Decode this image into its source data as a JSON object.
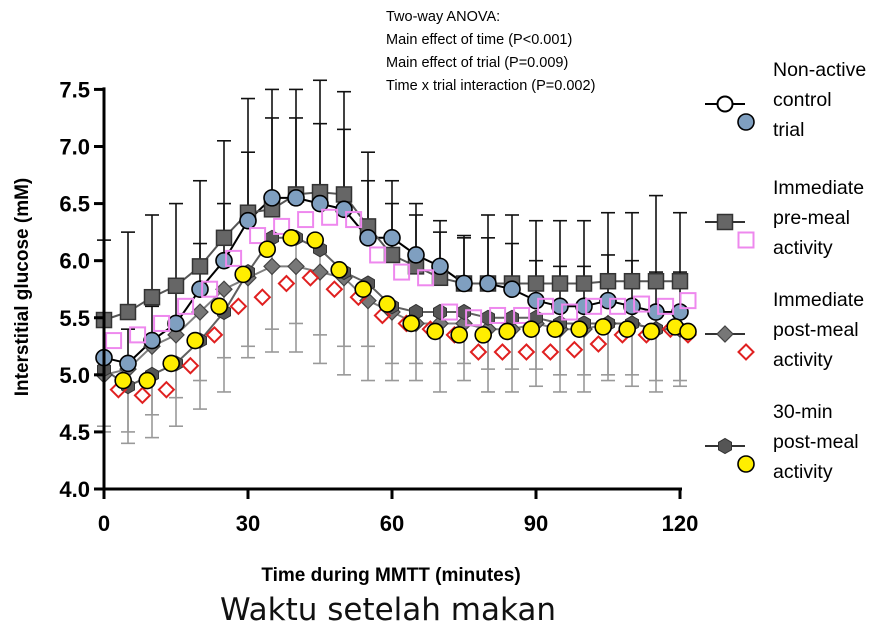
{
  "chart_data": {
    "type": "line",
    "xlabel": "Time during MMTT (minutes)",
    "ylabel": "Interstitial glucose (mM)",
    "xlim": [
      0,
      122
    ],
    "ylim": [
      4.0,
      7.6
    ],
    "xticks": [
      0,
      30,
      60,
      90,
      120
    ],
    "xtick_labels": [
      "0",
      "30",
      "60",
      "90",
      "120"
    ],
    "yticks": [
      4.0,
      4.5,
      5.0,
      5.5,
      6.0,
      6.5,
      7.0,
      7.5
    ],
    "ytick_labels": [
      "4.0",
      "4.5",
      "5.0",
      "5.5",
      "6.0",
      "6.5",
      "7.0",
      "7.5"
    ],
    "grid": false,
    "legend_position": "right",
    "annotation": [
      "Two-way ANOVA:",
      "Main effect of time (P<0.001)",
      "Main effect of trial (P=0.009)",
      "Time x trial interaction (P=0.002)"
    ],
    "x": [
      0,
      5,
      10,
      15,
      20,
      25,
      30,
      35,
      40,
      45,
      50,
      55,
      60,
      65,
      70,
      75,
      80,
      85,
      90,
      95,
      100,
      105,
      110,
      115,
      120
    ],
    "series": [
      {
        "name": "Non-active control trial",
        "legend_lines": [
          "Non-active",
          "control",
          "trial"
        ],
        "color": "#000000",
        "marker": "circle",
        "values": [
          5.15,
          5.1,
          5.3,
          5.45,
          5.75,
          6.0,
          6.35,
          6.55,
          6.55,
          6.5,
          6.45,
          6.2,
          6.2,
          6.05,
          5.95,
          5.8,
          5.8,
          5.75,
          5.65,
          5.6,
          5.6,
          5.65,
          5.6,
          5.55,
          5.55
        ],
        "errors": [
          0.3,
          0.3,
          0.3,
          0.3,
          0.4,
          0.5,
          0.6,
          0.7,
          0.7,
          0.7,
          0.7,
          0.5,
          0.5,
          0.45,
          0.4,
          0.4,
          0.4,
          0.4,
          0.35,
          0.35,
          0.35,
          0.4,
          0.4,
          0.35,
          0.35
        ]
      },
      {
        "name": "Immediate pre-meal activity",
        "legend_lines": [
          "Immediate",
          "pre-meal",
          "activity"
        ],
        "color": "#555555",
        "marker": "square",
        "values": [
          5.48,
          5.55,
          5.68,
          5.78,
          5.95,
          6.2,
          6.42,
          6.45,
          6.58,
          6.6,
          6.58,
          6.3,
          6.05,
          5.95,
          5.85,
          5.8,
          5.8,
          5.8,
          5.8,
          5.8,
          5.8,
          5.82,
          5.82,
          5.82,
          5.82
        ],
        "errors": [
          0.7,
          0.7,
          0.72,
          0.72,
          0.75,
          0.85,
          1.0,
          1.05,
          0.92,
          0.98,
          0.9,
          0.65,
          0.45,
          0.45,
          0.4,
          0.42,
          0.6,
          0.6,
          0.55,
          0.55,
          0.55,
          0.6,
          0.6,
          0.75,
          0.6
        ]
      },
      {
        "name": "Immediate post-meal activity",
        "legend_lines": [
          "Immediate",
          "post-meal",
          "activity"
        ],
        "color": "#808080",
        "marker": "diamond",
        "values": [
          5.0,
          5.05,
          5.25,
          5.35,
          5.55,
          5.75,
          5.85,
          5.95,
          5.95,
          5.9,
          5.85,
          5.65,
          5.55,
          5.45,
          5.45,
          5.45,
          5.4,
          5.4,
          5.45,
          5.4,
          5.4,
          5.45,
          5.45,
          5.4,
          5.4
        ],
        "errors": [
          0.5,
          0.55,
          0.6,
          0.55,
          0.6,
          0.6,
          0.6,
          0.75,
          0.75,
          0.8,
          0.85,
          0.7,
          0.6,
          0.5,
          0.6,
          0.5,
          0.55,
          0.55,
          0.55,
          0.55,
          0.55,
          0.5,
          0.55,
          0.55,
          0.5
        ]
      },
      {
        "name": "30-min post-meal activity",
        "legend_lines": [
          "30-min",
          "post-meal",
          "activity"
        ],
        "color": "#606060",
        "marker": "hexagon",
        "values": [
          5.05,
          4.9,
          5.0,
          5.1,
          5.3,
          5.55,
          5.9,
          6.2,
          6.2,
          6.1,
          5.9,
          5.8,
          5.6,
          5.55,
          5.55,
          5.55,
          5.5,
          5.5,
          5.5,
          5.45,
          5.45,
          5.45,
          5.45,
          5.4,
          5.4
        ],
        "errors": [
          0.5,
          0.5,
          0.55,
          0.55,
          0.6,
          0.7,
          0.75,
          0.8,
          0.75,
          0.75,
          0.65,
          0.55,
          0.5,
          0.45,
          0.45,
          0.45,
          0.45,
          0.45,
          0.45,
          0.45,
          0.45,
          0.45,
          0.45,
          0.45,
          0.45
        ]
      }
    ],
    "overlay_markers": [
      {
        "name": "Non-active control trial overlay",
        "marker": "circle-blue",
        "fill": "#7f9fc0",
        "stroke": "#000000",
        "x": [
          0,
          5,
          10,
          15,
          20,
          25,
          30,
          35,
          40,
          45,
          50,
          55,
          60,
          65,
          70,
          75,
          80,
          85,
          90,
          95,
          100,
          105,
          110,
          115,
          120
        ],
        "values": [
          5.15,
          5.1,
          5.3,
          5.45,
          5.75,
          6.0,
          6.35,
          6.55,
          6.55,
          6.5,
          6.45,
          6.2,
          6.2,
          6.05,
          5.95,
          5.8,
          5.8,
          5.75,
          5.65,
          5.6,
          5.6,
          5.65,
          5.6,
          5.55,
          5.55
        ]
      },
      {
        "name": "Immediate pre-meal activity overlay",
        "marker": "square-open",
        "stroke": "#ee88ee",
        "x": [
          2,
          7,
          12,
          17,
          22,
          27,
          32,
          37,
          42,
          47,
          52,
          57,
          62,
          67,
          72,
          77,
          82,
          87,
          92,
          97,
          102,
          107,
          112,
          117,
          122
        ],
        "values": [
          5.3,
          5.35,
          5.45,
          5.6,
          5.75,
          6.02,
          6.22,
          6.3,
          6.36,
          6.38,
          6.36,
          6.05,
          5.9,
          5.85,
          5.55,
          5.5,
          5.52,
          5.52,
          5.6,
          5.55,
          5.6,
          5.6,
          5.62,
          5.6,
          5.65
        ]
      },
      {
        "name": "Immediate post-meal activity overlay",
        "marker": "diamond-open",
        "stroke": "#e02020",
        "x": [
          3,
          8,
          13,
          18,
          23,
          28,
          33,
          38,
          43,
          48,
          53,
          58,
          63,
          68,
          73,
          78,
          83,
          88,
          93,
          98,
          103,
          108,
          113,
          118,
          122
        ],
        "values": [
          4.87,
          4.82,
          4.87,
          5.08,
          5.35,
          5.6,
          5.68,
          5.8,
          5.85,
          5.75,
          5.68,
          5.52,
          5.45,
          5.4,
          5.35,
          5.2,
          5.2,
          5.2,
          5.2,
          5.22,
          5.27,
          5.35,
          5.35,
          5.4,
          5.35
        ]
      },
      {
        "name": "30-min post-meal activity overlay",
        "marker": "circle-yellow",
        "fill": "#ffee00",
        "stroke": "#000000",
        "x": [
          4,
          9,
          14,
          19,
          24,
          29,
          34,
          39,
          44,
          49,
          54,
          59,
          64,
          69,
          74,
          79,
          84,
          89,
          94,
          99,
          104,
          109,
          114,
          119,
          123
        ],
        "values": [
          4.95,
          4.95,
          5.1,
          5.3,
          5.6,
          5.88,
          6.1,
          6.2,
          6.18,
          5.92,
          5.75,
          5.62,
          5.45,
          5.38,
          5.35,
          5.35,
          5.38,
          5.4,
          5.4,
          5.4,
          5.42,
          5.4,
          5.38,
          5.42,
          5.38
        ]
      }
    ]
  },
  "caption": "Waktu setelah makan"
}
